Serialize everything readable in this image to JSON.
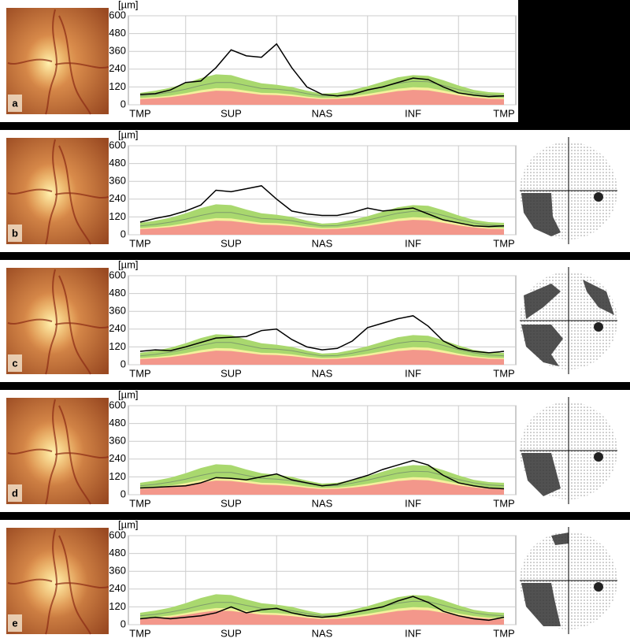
{
  "chart_data": [
    {
      "type": "line",
      "label": "a",
      "ylabel": "[µm]",
      "ylim": [
        0,
        600
      ],
      "yticks": [
        0,
        120,
        240,
        360,
        480,
        600
      ],
      "categories": [
        "TMP",
        null,
        null,
        null,
        null,
        null,
        "SUP",
        null,
        null,
        null,
        null,
        null,
        "NAS",
        null,
        null,
        null,
        null,
        null,
        "INF",
        null,
        null,
        null,
        null,
        null,
        "TMP"
      ],
      "series": [
        {
          "type": "area",
          "color": "#a9d86e",
          "values": [
            80,
            95,
            115,
            145,
            180,
            205,
            200,
            170,
            145,
            135,
            120,
            95,
            75,
            80,
            100,
            125,
            155,
            185,
            200,
            195,
            165,
            130,
            100,
            85,
            80
          ]
        },
        {
          "type": "area",
          "color": "#f4f19c",
          "values": [
            45,
            52,
            62,
            78,
            98,
            112,
            110,
            95,
            80,
            78,
            70,
            55,
            45,
            47,
            58,
            73,
            90,
            108,
            118,
            115,
            96,
            75,
            58,
            48,
            45
          ]
        },
        {
          "type": "area",
          "color": "#f3978b",
          "values": [
            38,
            44,
            52,
            66,
            82,
            95,
            92,
            80,
            68,
            65,
            58,
            46,
            38,
            40,
            48,
            60,
            76,
            92,
            100,
            97,
            80,
            63,
            49,
            40,
            38
          ]
        },
        {
          "type": "line",
          "color": "#7f9c6c",
          "values": [
            60,
            70,
            85,
            105,
            130,
            150,
            150,
            130,
            110,
            105,
            95,
            75,
            60,
            62,
            78,
            98,
            122,
            145,
            158,
            155,
            130,
            102,
            80,
            66,
            60
          ]
        },
        {
          "type": "line",
          "color": "#000000",
          "values": [
            70,
            75,
            100,
            150,
            160,
            250,
            370,
            330,
            320,
            410,
            250,
            120,
            70,
            60,
            70,
            100,
            120,
            150,
            180,
            170,
            120,
            80,
            65,
            55,
            60
          ]
        }
      ],
      "visual_field": false
    },
    {
      "type": "line",
      "label": "b",
      "ylabel": "[µm]",
      "ylim": [
        0,
        600
      ],
      "yticks": [
        0,
        120,
        240,
        360,
        480,
        600
      ],
      "categories": [
        "TMP",
        null,
        null,
        null,
        null,
        null,
        "SUP",
        null,
        null,
        null,
        null,
        null,
        "NAS",
        null,
        null,
        null,
        null,
        null,
        "INF",
        null,
        null,
        null,
        null,
        null,
        "TMP"
      ],
      "series": [
        {
          "type": "area",
          "color": "#a9d86e",
          "values": [
            80,
            95,
            115,
            145,
            180,
            205,
            200,
            170,
            145,
            135,
            120,
            95,
            75,
            80,
            100,
            125,
            155,
            185,
            200,
            195,
            165,
            130,
            100,
            85,
            80
          ]
        },
        {
          "type": "area",
          "color": "#f4f19c",
          "values": [
            45,
            52,
            62,
            78,
            98,
            112,
            110,
            95,
            80,
            78,
            70,
            55,
            45,
            47,
            58,
            73,
            90,
            108,
            118,
            115,
            96,
            75,
            58,
            48,
            45
          ]
        },
        {
          "type": "area",
          "color": "#f3978b",
          "values": [
            38,
            44,
            52,
            66,
            82,
            95,
            92,
            80,
            68,
            65,
            58,
            46,
            38,
            40,
            48,
            60,
            76,
            92,
            100,
            97,
            80,
            63,
            49,
            40,
            38
          ]
        },
        {
          "type": "line",
          "color": "#7f9c6c",
          "values": [
            60,
            70,
            85,
            105,
            130,
            150,
            150,
            130,
            110,
            105,
            95,
            75,
            60,
            62,
            78,
            98,
            122,
            145,
            158,
            155,
            130,
            102,
            80,
            66,
            60
          ]
        },
        {
          "type": "line",
          "color": "#000000",
          "values": [
            85,
            110,
            130,
            160,
            200,
            300,
            290,
            310,
            330,
            240,
            160,
            140,
            130,
            130,
            150,
            180,
            160,
            170,
            180,
            140,
            100,
            80,
            60,
            55,
            60
          ]
        }
      ],
      "visual_field": true
    },
    {
      "type": "line",
      "label": "c",
      "ylabel": "[µm]",
      "ylim": [
        0,
        600
      ],
      "yticks": [
        0,
        120,
        240,
        360,
        480,
        600
      ],
      "categories": [
        "TMP",
        null,
        null,
        null,
        null,
        null,
        "SUP",
        null,
        null,
        null,
        null,
        null,
        "NAS",
        null,
        null,
        null,
        null,
        null,
        "INF",
        null,
        null,
        null,
        null,
        null,
        "TMP"
      ],
      "series": [
        {
          "type": "area",
          "color": "#a9d86e",
          "values": [
            80,
            95,
            115,
            145,
            180,
            205,
            200,
            170,
            145,
            135,
            120,
            95,
            75,
            80,
            100,
            125,
            155,
            185,
            200,
            195,
            165,
            130,
            100,
            85,
            80
          ]
        },
        {
          "type": "area",
          "color": "#f4f19c",
          "values": [
            45,
            52,
            62,
            78,
            98,
            112,
            110,
            95,
            80,
            78,
            70,
            55,
            45,
            47,
            58,
            73,
            90,
            108,
            118,
            115,
            96,
            75,
            58,
            48,
            45
          ]
        },
        {
          "type": "area",
          "color": "#f3978b",
          "values": [
            38,
            44,
            52,
            66,
            82,
            95,
            92,
            80,
            68,
            65,
            58,
            46,
            38,
            40,
            48,
            60,
            76,
            92,
            100,
            97,
            80,
            63,
            49,
            40,
            38
          ]
        },
        {
          "type": "line",
          "color": "#7f9c6c",
          "values": [
            60,
            70,
            85,
            105,
            130,
            150,
            150,
            130,
            110,
            105,
            95,
            75,
            60,
            62,
            78,
            98,
            122,
            145,
            158,
            155,
            130,
            102,
            80,
            66,
            60
          ]
        },
        {
          "type": "line",
          "color": "#000000",
          "values": [
            90,
            100,
            95,
            120,
            150,
            180,
            185,
            190,
            230,
            240,
            170,
            120,
            100,
            110,
            160,
            250,
            280,
            310,
            330,
            260,
            160,
            110,
            90,
            80,
            90
          ]
        }
      ],
      "visual_field": true
    },
    {
      "type": "line",
      "label": "d",
      "ylabel": "[µm]",
      "ylim": [
        0,
        600
      ],
      "yticks": [
        0,
        120,
        240,
        360,
        480,
        600
      ],
      "categories": [
        "TMP",
        null,
        null,
        null,
        null,
        null,
        "SUP",
        null,
        null,
        null,
        null,
        null,
        "NAS",
        null,
        null,
        null,
        null,
        null,
        "INF",
        null,
        null,
        null,
        null,
        null,
        "TMP"
      ],
      "series": [
        {
          "type": "area",
          "color": "#a9d86e",
          "values": [
            80,
            95,
            115,
            145,
            180,
            205,
            200,
            170,
            145,
            135,
            120,
            95,
            75,
            80,
            100,
            125,
            155,
            185,
            200,
            195,
            165,
            130,
            100,
            85,
            80
          ]
        },
        {
          "type": "area",
          "color": "#f4f19c",
          "values": [
            45,
            52,
            62,
            78,
            98,
            112,
            110,
            95,
            80,
            78,
            70,
            55,
            45,
            47,
            58,
            73,
            90,
            108,
            118,
            115,
            96,
            75,
            58,
            48,
            45
          ]
        },
        {
          "type": "area",
          "color": "#f3978b",
          "values": [
            38,
            44,
            52,
            66,
            82,
            95,
            92,
            80,
            68,
            65,
            58,
            46,
            38,
            40,
            48,
            60,
            76,
            92,
            100,
            97,
            80,
            63,
            49,
            40,
            38
          ]
        },
        {
          "type": "line",
          "color": "#7f9c6c",
          "values": [
            60,
            70,
            85,
            105,
            130,
            150,
            150,
            130,
            110,
            105,
            95,
            75,
            60,
            62,
            78,
            98,
            122,
            145,
            158,
            155,
            130,
            102,
            80,
            66,
            60
          ]
        },
        {
          "type": "line",
          "color": "#000000",
          "values": [
            45,
            50,
            55,
            60,
            80,
            115,
            110,
            100,
            120,
            140,
            100,
            80,
            60,
            70,
            100,
            130,
            170,
            200,
            230,
            200,
            130,
            80,
            60,
            45,
            40
          ]
        }
      ],
      "visual_field": true
    },
    {
      "type": "line",
      "label": "e",
      "ylabel": "[µm]",
      "ylim": [
        0,
        600
      ],
      "yticks": [
        0,
        120,
        240,
        360,
        480,
        600
      ],
      "categories": [
        "TMP",
        null,
        null,
        null,
        null,
        null,
        "SUP",
        null,
        null,
        null,
        null,
        null,
        "NAS",
        null,
        null,
        null,
        null,
        null,
        "INF",
        null,
        null,
        null,
        null,
        null,
        "TMP"
      ],
      "series": [
        {
          "type": "area",
          "color": "#a9d86e",
          "values": [
            80,
            95,
            115,
            145,
            180,
            205,
            200,
            170,
            145,
            135,
            120,
            95,
            75,
            80,
            100,
            125,
            155,
            185,
            200,
            195,
            165,
            130,
            100,
            85,
            80
          ]
        },
        {
          "type": "area",
          "color": "#f4f19c",
          "values": [
            45,
            52,
            62,
            78,
            98,
            112,
            110,
            95,
            80,
            78,
            70,
            55,
            45,
            47,
            58,
            73,
            90,
            108,
            118,
            115,
            96,
            75,
            58,
            48,
            45
          ]
        },
        {
          "type": "area",
          "color": "#f3978b",
          "values": [
            38,
            44,
            52,
            66,
            82,
            95,
            92,
            80,
            68,
            65,
            58,
            46,
            38,
            40,
            48,
            60,
            76,
            92,
            100,
            97,
            80,
            63,
            49,
            40,
            38
          ]
        },
        {
          "type": "line",
          "color": "#7f9c6c",
          "values": [
            60,
            70,
            85,
            105,
            130,
            150,
            150,
            130,
            110,
            105,
            95,
            75,
            60,
            62,
            78,
            98,
            122,
            145,
            158,
            155,
            130,
            102,
            80,
            66,
            60
          ]
        },
        {
          "type": "line",
          "color": "#000000",
          "values": [
            40,
            50,
            40,
            50,
            60,
            80,
            120,
            80,
            100,
            110,
            80,
            60,
            50,
            60,
            80,
            100,
            120,
            160,
            190,
            150,
            90,
            60,
            40,
            30,
            50
          ]
        }
      ],
      "visual_field": true
    }
  ]
}
